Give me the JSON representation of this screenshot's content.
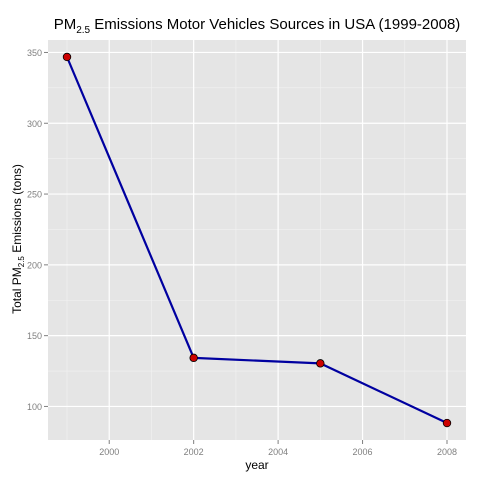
{
  "chart_data": {
    "type": "line",
    "title": {
      "prefix": "PM",
      "subscript": "2.5",
      "suffix": " Emissions Motor Vehicles Sources in USA (1999-2008)"
    },
    "xlabel": "year",
    "ylabel": {
      "prefix": "Total PM",
      "subscript": "2.5",
      "suffix": " Emissions (tons)"
    },
    "x": [
      1999,
      2002,
      2005,
      2008
    ],
    "series": [
      {
        "values": [
          346.82,
          134.31,
          130.43,
          88.28
        ]
      }
    ],
    "xlim": [
      1998.55,
      2008.45
    ],
    "ylim": [
      76.3,
      358.8
    ],
    "xticks": [
      2000,
      2002,
      2004,
      2006,
      2008
    ],
    "yticks": [
      100,
      150,
      200,
      250,
      300,
      350
    ],
    "grid": true,
    "legend": "none",
    "colors": {
      "panel_background": "#e5e5e5",
      "grid_major": "#ffffff",
      "grid_minor": "#f2f2f2",
      "line": "#0000a0",
      "point_fill": "#cc0000",
      "point_stroke": "#000000",
      "tick_label": "#7f7f7f",
      "text": "#000000"
    }
  }
}
